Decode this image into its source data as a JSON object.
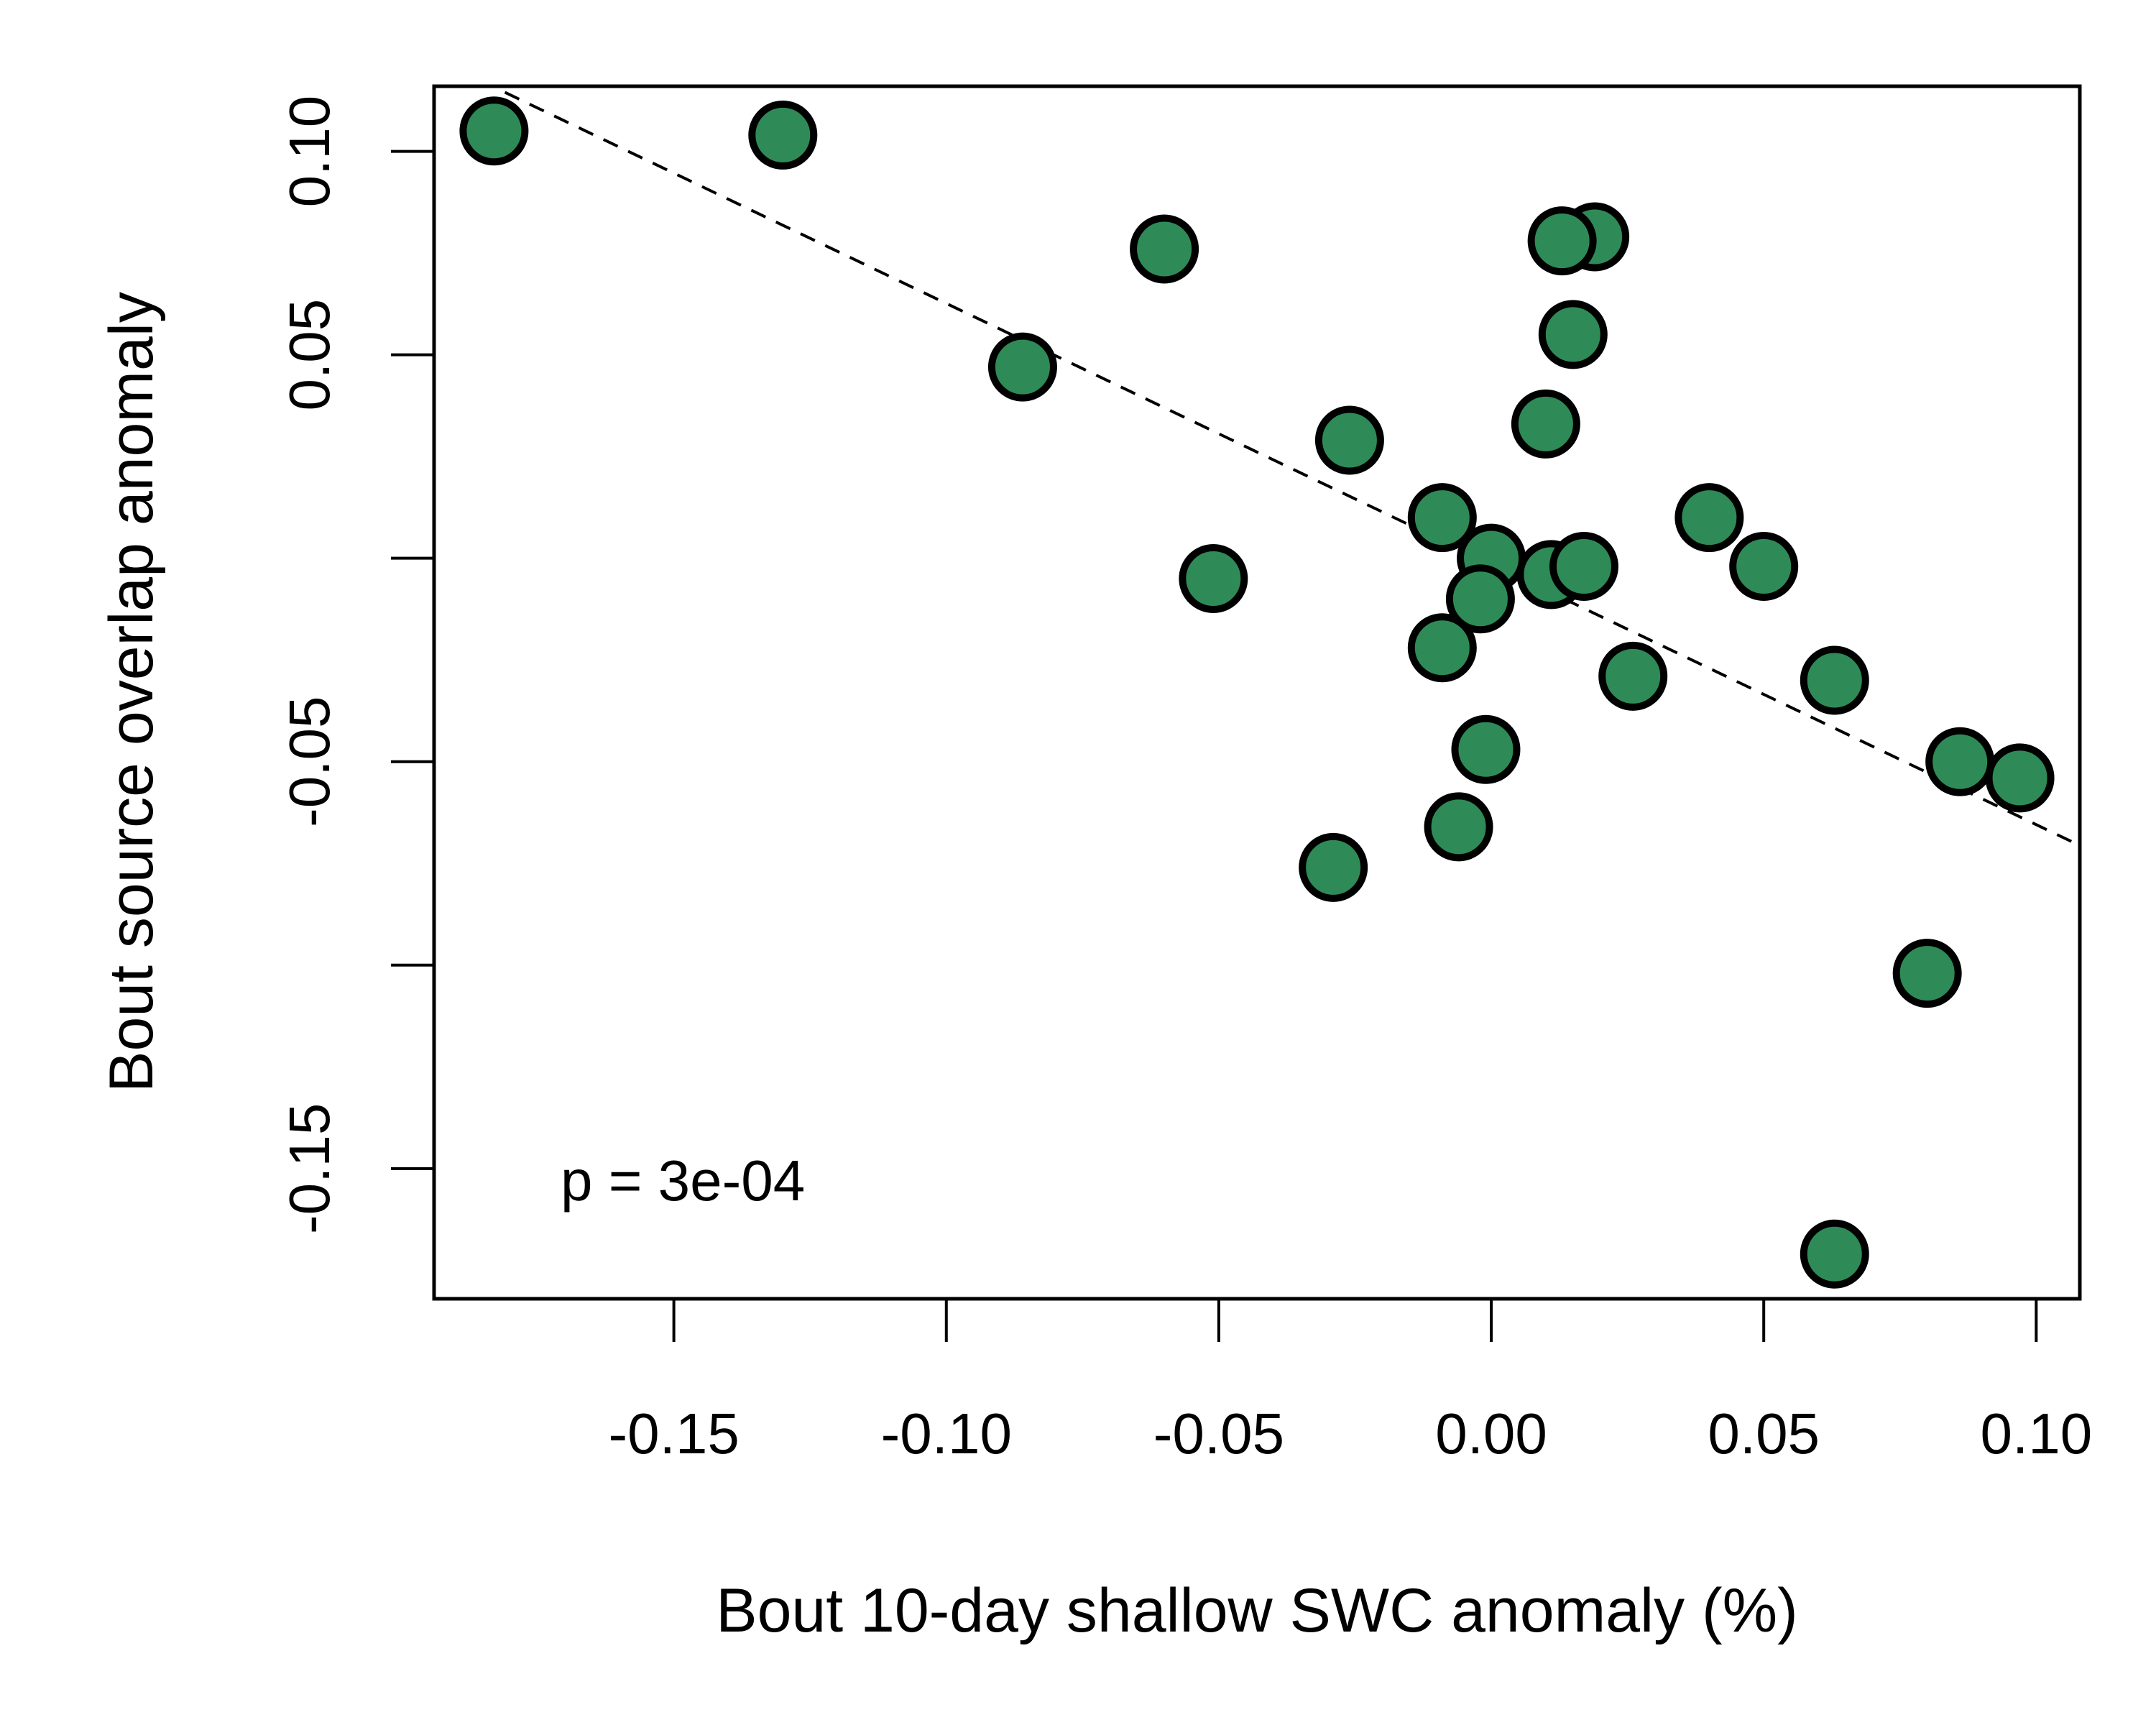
{
  "chart_data": {
    "type": "scatter",
    "xlabel": "Bout 10-day shallow SWC anomaly (%)",
    "ylabel": "Bout source overlap anomaly",
    "xlim": [
      -0.194,
      0.108
    ],
    "ylim": [
      -0.182,
      0.116
    ],
    "x_ticks": [
      -0.15,
      -0.1,
      -0.05,
      0.0,
      0.05,
      0.1
    ],
    "x_tick_labels": [
      "-0.15",
      "-0.10",
      "-0.05",
      "0.00",
      "0.05",
      "0.10"
    ],
    "y_ticks": [
      -0.15,
      -0.1,
      -0.05,
      0.0,
      0.05,
      0.1
    ],
    "y_tick_labels": [
      "-0.15",
      "",
      "-0.05",
      "",
      "0.05",
      "0.10"
    ],
    "annotation": "p = 3e-04",
    "grid": false,
    "marker_fill": "#2e8b57",
    "marker_edge": "#000000",
    "trend_line": {
      "x": [
        -0.181,
        0.108
      ],
      "y": [
        0.1145,
        -0.0706
      ],
      "style": "dashed"
    },
    "points": [
      {
        "x": -0.183,
        "y": 0.105
      },
      {
        "x": -0.13,
        "y": 0.104
      },
      {
        "x": -0.06,
        "y": 0.076
      },
      {
        "x": -0.086,
        "y": 0.047
      },
      {
        "x": -0.026,
        "y": 0.029
      },
      {
        "x": -0.051,
        "y": -0.005
      },
      {
        "x": -0.009,
        "y": 0.01
      },
      {
        "x": 0.0,
        "y": 0.0
      },
      {
        "x": -0.002,
        "y": -0.01
      },
      {
        "x": -0.009,
        "y": -0.022
      },
      {
        "x": 0.011,
        "y": -0.004
      },
      {
        "x": 0.017,
        "y": -0.002
      },
      {
        "x": 0.01,
        "y": 0.033
      },
      {
        "x": 0.015,
        "y": 0.055
      },
      {
        "x": 0.019,
        "y": 0.079
      },
      {
        "x": 0.013,
        "y": 0.078
      },
      {
        "x": 0.026,
        "y": -0.029
      },
      {
        "x": -0.001,
        "y": -0.047
      },
      {
        "x": -0.006,
        "y": -0.066
      },
      {
        "x": -0.029,
        "y": -0.076
      },
      {
        "x": 0.04,
        "y": 0.01
      },
      {
        "x": 0.05,
        "y": -0.002
      },
      {
        "x": 0.063,
        "y": -0.03
      },
      {
        "x": 0.086,
        "y": -0.05
      },
      {
        "x": 0.097,
        "y": -0.054
      },
      {
        "x": 0.08,
        "y": -0.102
      },
      {
        "x": 0.063,
        "y": -0.171
      }
    ]
  }
}
